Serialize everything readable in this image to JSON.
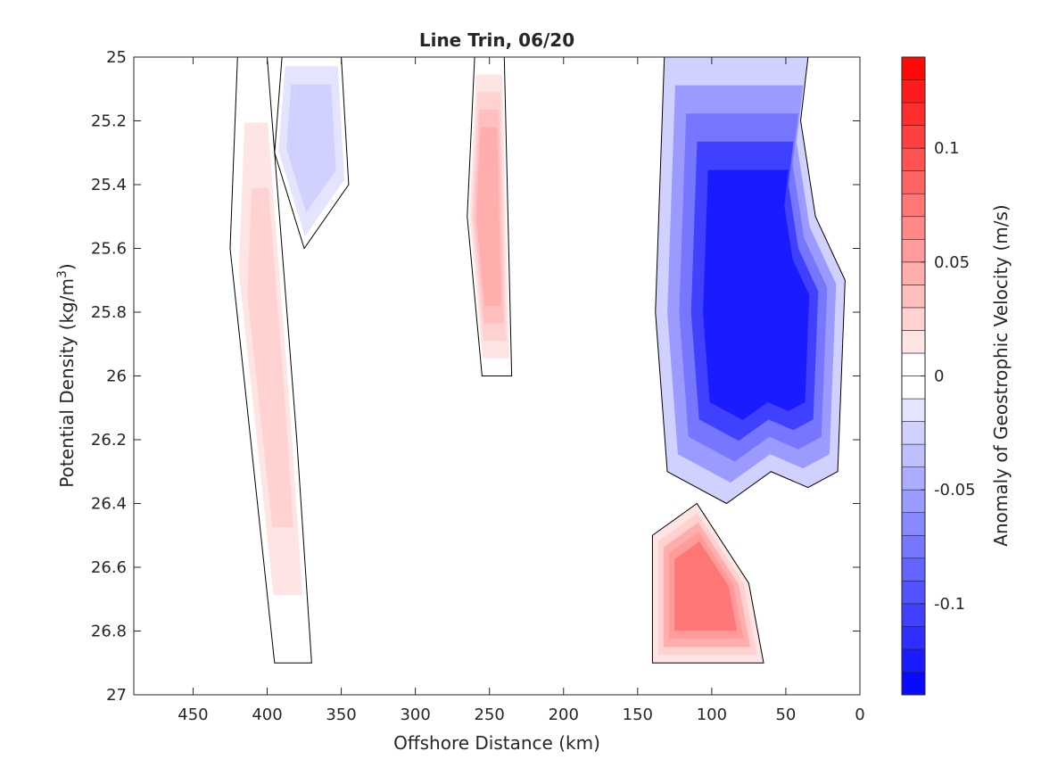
{
  "chart_data": {
    "type": "heatmap",
    "subtype": "filled contour section",
    "title": "Line Trin, 06/20",
    "xlabel": "Offshore Distance (km)",
    "ylabel_main": "Potential Density (kg/m",
    "ylabel_sup": "3",
    "ylabel_close": ")",
    "colorbar_label": "Anomaly of Geostrophic Velocity (m/s)",
    "x_reversed": true,
    "xlim": [
      490,
      0
    ],
    "ylim": [
      25,
      27
    ],
    "y_reversed": true,
    "x_ticks": [
      450,
      400,
      350,
      300,
      250,
      200,
      150,
      100,
      50,
      0
    ],
    "x_tick_labels": [
      "450",
      "400",
      "350",
      "300",
      "250",
      "200",
      "150",
      "100",
      "50",
      "0"
    ],
    "y_ticks": [
      25,
      25.2,
      25.4,
      25.6,
      25.8,
      26,
      26.2,
      26.4,
      26.6,
      26.8,
      27
    ],
    "y_tick_labels": [
      "25",
      "25.2",
      "25.4",
      "25.6",
      "25.8",
      "26",
      "26.2",
      "26.4",
      "26.6",
      "26.8",
      "27"
    ],
    "colorbar_range": [
      -0.14,
      0.14
    ],
    "colorbar_levels": 28,
    "colorbar_ticks": [
      0.1,
      0.05,
      0,
      -0.05,
      -0.1
    ],
    "colorbar_tick_labels": [
      "0.1",
      "0.05",
      "0",
      "-0.05",
      "-0.1"
    ],
    "colormap": {
      "negative": "#0000ff",
      "zero": "#ffffff",
      "positive": "#ff0000"
    },
    "zero_contour_color": "#000000",
    "regions": [
      {
        "name": "negative core upper",
        "x": [
          [
            132,
            25
          ],
          [
            35,
            25
          ],
          [
            40,
            25.2
          ],
          [
            30,
            25.5
          ],
          [
            10,
            25.7
          ],
          [
            15,
            26.3
          ],
          [
            35,
            26.35
          ],
          [
            60,
            26.3
          ],
          [
            90,
            26.4
          ],
          [
            130,
            26.3
          ],
          [
            138,
            25.8
          ]
        ],
        "value": -0.13
      },
      {
        "name": "positive core lower",
        "x": [
          [
            140,
            26.5
          ],
          [
            110,
            26.4
          ],
          [
            75,
            26.65
          ],
          [
            65,
            26.9
          ],
          [
            140,
            26.9
          ]
        ],
        "value": 0.07
      },
      {
        "name": "positive band 260km",
        "x": [
          [
            260,
            25
          ],
          [
            240,
            25
          ],
          [
            235,
            26
          ],
          [
            255,
            26
          ],
          [
            265,
            25.5
          ]
        ],
        "value": 0.04
      },
      {
        "name": "negative band 370km",
        "x": [
          [
            390,
            25
          ],
          [
            350,
            25
          ],
          [
            345,
            25.4
          ],
          [
            375,
            25.6
          ],
          [
            395,
            25.3
          ]
        ],
        "value": -0.03
      },
      {
        "name": "positive band 420km",
        "x": [
          [
            420,
            25
          ],
          [
            400,
            25
          ],
          [
            380,
            26.2
          ],
          [
            370,
            26.9
          ],
          [
            395,
            26.9
          ],
          [
            425,
            25.6
          ]
        ],
        "value": 0.02
      }
    ]
  }
}
